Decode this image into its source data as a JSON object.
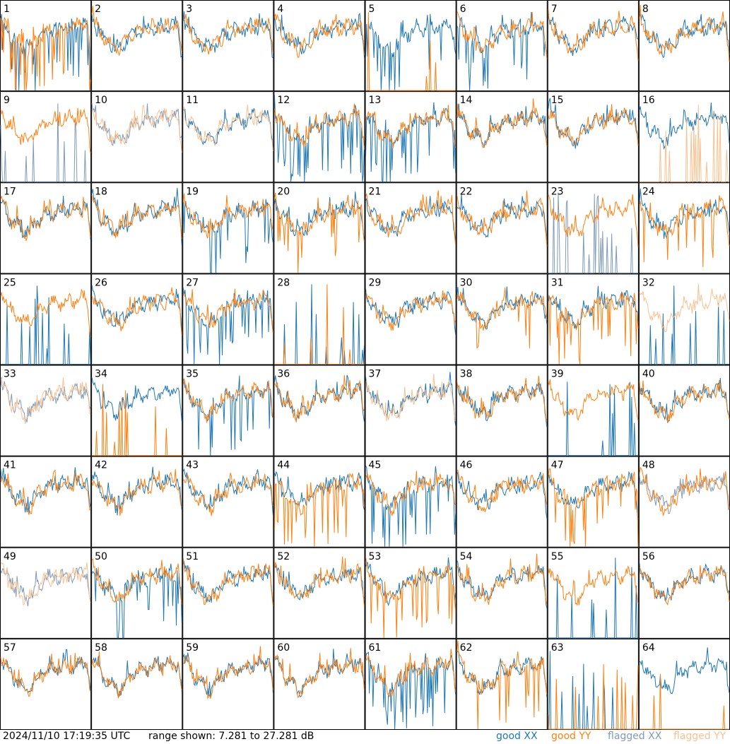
{
  "footer": {
    "timestamp": "2024/11/10 17:19:35 UTC",
    "range_text": "range shown: 7.281 to 27.281 dB"
  },
  "legend": {
    "good_xx": "good XX",
    "good_yy": "good YY",
    "flagged_xx": "flagged XX",
    "flagged_yy": "flagged YY"
  },
  "colors": {
    "good_xx": "#1f77b4",
    "good_yy": "#ff7f0e",
    "flagged_xx": "#7f9bb8",
    "flagged_yy": "#f9c08f",
    "border": "#000000"
  },
  "chart_data": {
    "type": "line",
    "layout": "8x8 small multiples",
    "y_range_db": [
      7.281,
      27.281
    ],
    "panel_labels": [
      "1",
      "2",
      "3",
      "4",
      "5",
      "6",
      "7",
      "8",
      "9",
      "10",
      "11",
      "12",
      "13",
      "14",
      "15",
      "16",
      "17",
      "18",
      "19",
      "20",
      "21",
      "22",
      "23",
      "24",
      "25",
      "26",
      "27",
      "28",
      "29",
      "30",
      "31",
      "32",
      "33",
      "34",
      "35",
      "36",
      "37",
      "38",
      "39",
      "40",
      "41",
      "42",
      "43",
      "44",
      "45",
      "46",
      "47",
      "48",
      "49",
      "50",
      "51",
      "52",
      "53",
      "54",
      "55",
      "56",
      "57",
      "58",
      "59",
      "60",
      "61",
      "62",
      "63",
      "64"
    ],
    "panels": [
      {
        "n": 1,
        "xx": "good",
        "xxs": "v",
        "yy": "good",
        "yys": "v"
      },
      {
        "n": 2,
        "xx": "good",
        "xxs": "n",
        "yy": "good",
        "yys": "n"
      },
      {
        "n": 3,
        "xx": "good",
        "xxs": "n",
        "yy": "good",
        "yys": "n"
      },
      {
        "n": 4,
        "xx": "good",
        "xxs": "n",
        "yy": "good",
        "yys": "n"
      },
      {
        "n": 5,
        "xx": "good",
        "xxs": "v",
        "yy": "good",
        "yys": "s"
      },
      {
        "n": 6,
        "xx": "good",
        "xxs": "v",
        "yy": "good",
        "yys": "n"
      },
      {
        "n": 7,
        "xx": "good",
        "xxs": "n",
        "yy": "good",
        "yys": "n"
      },
      {
        "n": 8,
        "xx": "good",
        "xxs": "n",
        "yy": "good",
        "yys": "n"
      },
      {
        "n": 9,
        "xx": "flagged",
        "xxs": "s",
        "yy": "good",
        "yys": "n"
      },
      {
        "n": 10,
        "xx": "flagged",
        "xxs": "n",
        "yy": "flagged",
        "yys": "n"
      },
      {
        "n": 11,
        "xx": "good",
        "xxs": "n",
        "yy": "flagged",
        "yys": "n"
      },
      {
        "n": 12,
        "xx": "good",
        "xxs": "v",
        "yy": "good",
        "yys": "n"
      },
      {
        "n": 13,
        "xx": "good",
        "xxs": "v",
        "yy": "good",
        "yys": "n"
      },
      {
        "n": 14,
        "xx": "good",
        "xxs": "n",
        "yy": "good",
        "yys": "n"
      },
      {
        "n": 15,
        "xx": "good",
        "xxs": "n",
        "yy": "good",
        "yys": "n"
      },
      {
        "n": 16,
        "xx": "good",
        "xxs": "n",
        "yy": "flagged",
        "yys": "s"
      },
      {
        "n": 17,
        "xx": "good",
        "xxs": "n",
        "yy": "good",
        "yys": "n"
      },
      {
        "n": 18,
        "xx": "good",
        "xxs": "n",
        "yy": "good",
        "yys": "n"
      },
      {
        "n": 19,
        "xx": "good",
        "xxs": "v",
        "yy": "good",
        "yys": "n"
      },
      {
        "n": 20,
        "xx": "good",
        "xxs": "n",
        "yy": "good",
        "yys": "v"
      },
      {
        "n": 21,
        "xx": "good",
        "xxs": "n",
        "yy": "good",
        "yys": "n"
      },
      {
        "n": 22,
        "xx": "good",
        "xxs": "n",
        "yy": "good",
        "yys": "n"
      },
      {
        "n": 23,
        "xx": "flagged",
        "xxs": "s",
        "yy": "good",
        "yys": "n"
      },
      {
        "n": 24,
        "xx": "good",
        "xxs": "n",
        "yy": "good",
        "yys": "v"
      },
      {
        "n": 25,
        "xx": "good",
        "xxs": "s",
        "yy": "good",
        "yys": "n"
      },
      {
        "n": 26,
        "xx": "good",
        "xxs": "n",
        "yy": "good",
        "yys": "n"
      },
      {
        "n": 27,
        "xx": "good",
        "xxs": "v",
        "yy": "good",
        "yys": "n"
      },
      {
        "n": 28,
        "xx": "good",
        "xxs": "s",
        "yy": "good",
        "yys": "s"
      },
      {
        "n": 29,
        "xx": "good",
        "xxs": "n",
        "yy": "good",
        "yys": "n"
      },
      {
        "n": 30,
        "xx": "good",
        "xxs": "n",
        "yy": "good",
        "yys": "v"
      },
      {
        "n": 31,
        "xx": "good",
        "xxs": "n",
        "yy": "good",
        "yys": "v"
      },
      {
        "n": 32,
        "xx": "good",
        "xxs": "s",
        "yy": "flagged",
        "yys": "n"
      },
      {
        "n": 33,
        "xx": "flagged",
        "xxs": "n",
        "yy": "flagged",
        "yys": "n"
      },
      {
        "n": 34,
        "xx": "good",
        "xxs": "n",
        "yy": "good",
        "yys": "s"
      },
      {
        "n": 35,
        "xx": "good",
        "xxs": "v",
        "yy": "good",
        "yys": "n"
      },
      {
        "n": 36,
        "xx": "good",
        "xxs": "n",
        "yy": "good",
        "yys": "n"
      },
      {
        "n": 37,
        "xx": "good",
        "xxs": "n",
        "yy": "flagged",
        "yys": "n"
      },
      {
        "n": 38,
        "xx": "good",
        "xxs": "n",
        "yy": "good",
        "yys": "n"
      },
      {
        "n": 39,
        "xx": "good",
        "xxs": "s",
        "yy": "good",
        "yys": "n"
      },
      {
        "n": 40,
        "xx": "good",
        "xxs": "n",
        "yy": "good",
        "yys": "n"
      },
      {
        "n": 41,
        "xx": "good",
        "xxs": "n",
        "yy": "good",
        "yys": "n"
      },
      {
        "n": 42,
        "xx": "good",
        "xxs": "n",
        "yy": "good",
        "yys": "n"
      },
      {
        "n": 43,
        "xx": "good",
        "xxs": "n",
        "yy": "good",
        "yys": "n"
      },
      {
        "n": 44,
        "xx": "good",
        "xxs": "n",
        "yy": "good",
        "yys": "v"
      },
      {
        "n": 45,
        "xx": "good",
        "xxs": "v",
        "yy": "good",
        "yys": "n"
      },
      {
        "n": 46,
        "xx": "good",
        "xxs": "n",
        "yy": "good",
        "yys": "n"
      },
      {
        "n": 47,
        "xx": "good",
        "xxs": "n",
        "yy": "good",
        "yys": "v"
      },
      {
        "n": 48,
        "xx": "flagged",
        "xxs": "n",
        "yy": "good",
        "yys": "n"
      },
      {
        "n": 49,
        "xx": "flagged",
        "xxs": "n",
        "yy": "flagged",
        "yys": "n"
      },
      {
        "n": 50,
        "xx": "good",
        "xxs": "v",
        "yy": "good",
        "yys": "n"
      },
      {
        "n": 51,
        "xx": "good",
        "xxs": "n",
        "yy": "good",
        "yys": "n"
      },
      {
        "n": 52,
        "xx": "good",
        "xxs": "n",
        "yy": "good",
        "yys": "n"
      },
      {
        "n": 53,
        "xx": "good",
        "xxs": "n",
        "yy": "good",
        "yys": "v"
      },
      {
        "n": 54,
        "xx": "good",
        "xxs": "n",
        "yy": "good",
        "yys": "n"
      },
      {
        "n": 55,
        "xx": "good",
        "xxs": "s",
        "yy": "good",
        "yys": "n"
      },
      {
        "n": 56,
        "xx": "good",
        "xxs": "n",
        "yy": "good",
        "yys": "n"
      },
      {
        "n": 57,
        "xx": "good",
        "xxs": "n",
        "yy": "good",
        "yys": "n"
      },
      {
        "n": 58,
        "xx": "good",
        "xxs": "n",
        "yy": "good",
        "yys": "n"
      },
      {
        "n": 59,
        "xx": "good",
        "xxs": "n",
        "yy": "good",
        "yys": "n"
      },
      {
        "n": 60,
        "xx": "good",
        "xxs": "n",
        "yy": "good",
        "yys": "n"
      },
      {
        "n": 61,
        "xx": "good",
        "xxs": "v",
        "yy": "good",
        "yys": "n"
      },
      {
        "n": 62,
        "xx": "good",
        "xxs": "n",
        "yy": "good",
        "yys": "v"
      },
      {
        "n": 63,
        "xx": "good",
        "xxs": "s",
        "yy": "good",
        "yys": "s"
      },
      {
        "n": 64,
        "xx": "good",
        "xxs": "n",
        "yy": "good",
        "yys": "s"
      }
    ]
  }
}
